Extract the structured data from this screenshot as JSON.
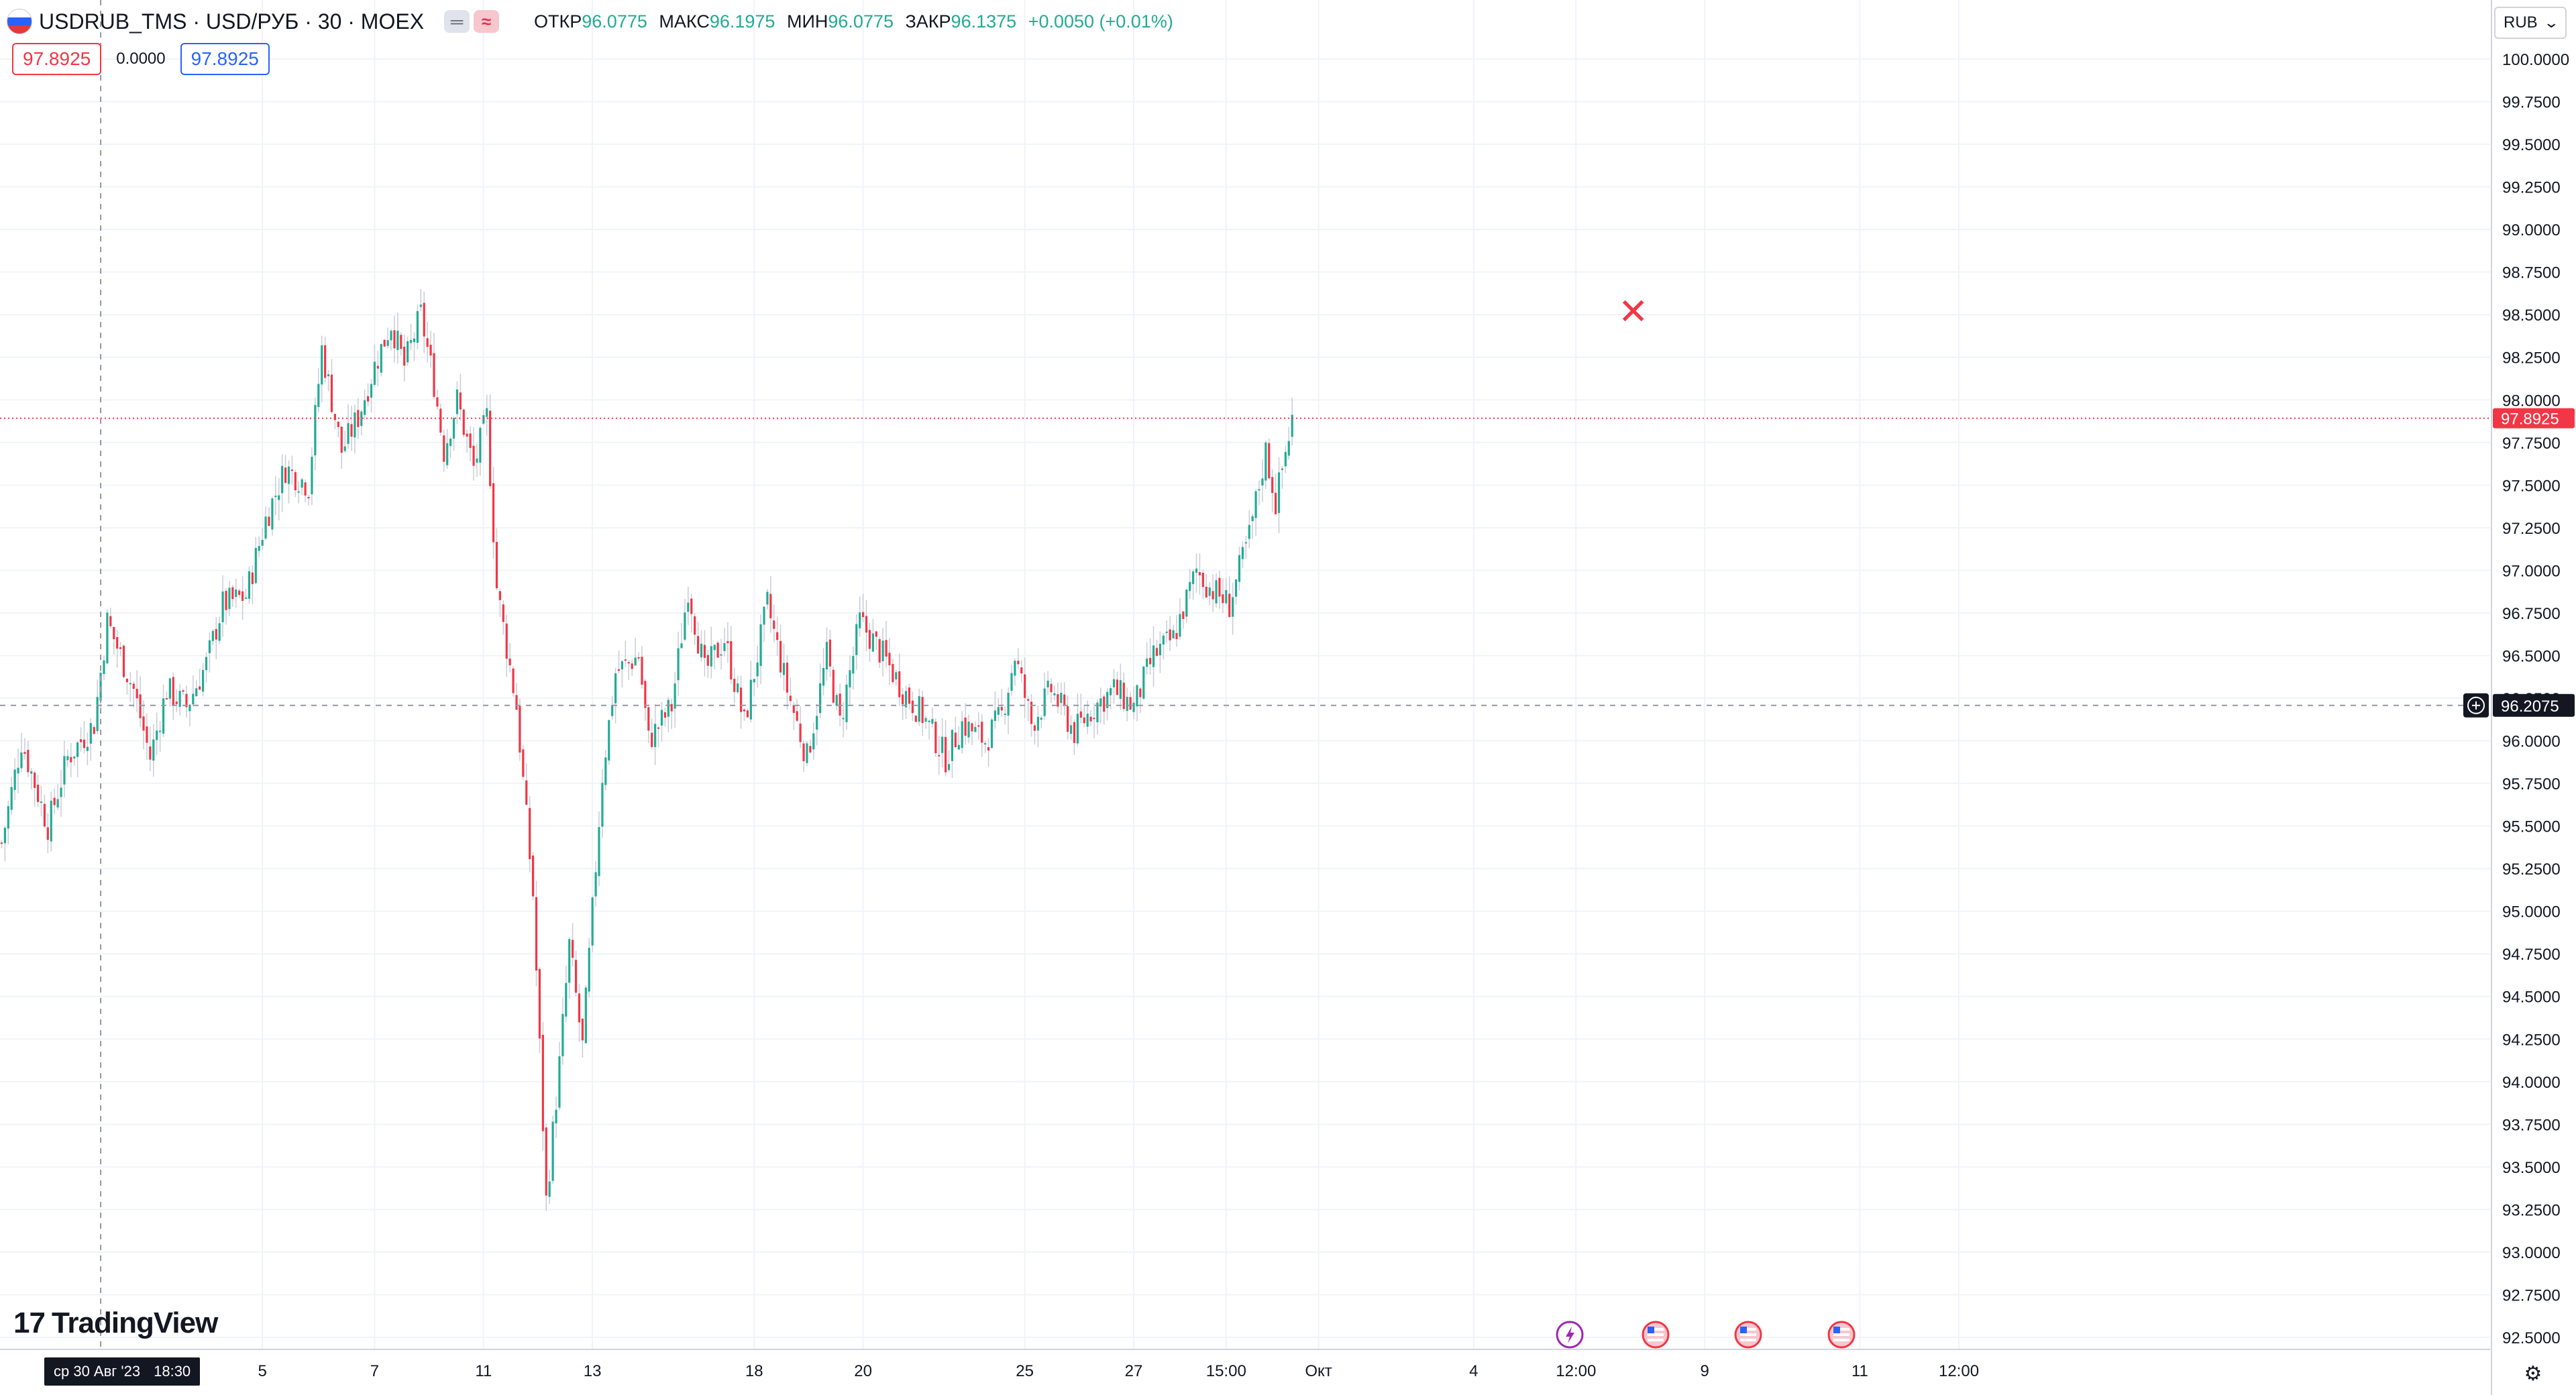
{
  "header": {
    "symbol": "USDRUB_TMS · USD/РУБ · 30 · MOEX",
    "toggle_a": "═",
    "toggle_b": "≈",
    "ohlc": {
      "open_label": "ОТКР",
      "open": "96.0775",
      "high_label": "МАКС",
      "high": "96.1975",
      "low_label": "МИН",
      "low": "96.0775",
      "close_label": "ЗАКР",
      "close": "96.1375",
      "change": "+0.0050 (+0.01%)"
    }
  },
  "quote": {
    "bid": "97.8925",
    "spread": "0.0000",
    "ask": "97.8925"
  },
  "currency_button": {
    "label": "RUB",
    "icon": "chevron-down-icon"
  },
  "crosshair_date": {
    "date": "ср 30 Авг '23",
    "time": "18:30"
  },
  "branding": {
    "logo_text": "TradingView",
    "logo_mark": "17"
  },
  "colors": {
    "up": "#22ab94",
    "down": "#f23645",
    "grid": "#f0f3fa",
    "last_price": "#f23645",
    "crosshair_label": "#131722"
  },
  "event_icons": [
    "lightning-icon",
    "us-flag-icon",
    "us-flag-icon",
    "us-flag-icon"
  ],
  "chart_data": {
    "type": "candlestick",
    "instrument": "USDRUB_TMS",
    "interval": "30",
    "exchange": "MOEX",
    "y_axis": {
      "ticks": [
        "100.0000",
        "99.7500",
        "99.5000",
        "99.2500",
        "99.0000",
        "98.7500",
        "98.5000",
        "98.2500",
        "98.0000",
        "97.7500",
        "97.5000",
        "97.2500",
        "97.0000",
        "96.7500",
        "96.5000",
        "96.2500",
        "96.0000",
        "95.7500",
        "95.5000",
        "95.2500",
        "95.0000",
        "94.7500",
        "94.5000",
        "94.2500",
        "94.0000",
        "93.7500",
        "93.5000",
        "93.2500",
        "93.0000",
        "92.7500",
        "92.5000"
      ],
      "ylim": [
        92.5,
        100.0
      ]
    },
    "x_axis": {
      "ticks": [
        {
          "label": "5",
          "bar": 79
        },
        {
          "label": "7",
          "bar": 113
        },
        {
          "label": "11",
          "bar": 146
        },
        {
          "label": "13",
          "bar": 179
        },
        {
          "label": "18",
          "bar": 228
        },
        {
          "label": "20",
          "bar": 261
        },
        {
          "label": "25",
          "bar": 310
        },
        {
          "label": "27",
          "bar": 343
        },
        {
          "label": "15:00",
          "bar": 371
        },
        {
          "label": "Окт",
          "bar": 399
        },
        {
          "label": "4",
          "bar": 446
        },
        {
          "label": "12:00",
          "bar": 477
        },
        {
          "label": "9",
          "bar": 516
        },
        {
          "label": "11",
          "bar": 563
        },
        {
          "label": "12:00",
          "bar": 593
        }
      ]
    },
    "last_price": {
      "value": 97.8925,
      "label": "97.8925"
    },
    "crosshair_price": {
      "value": 96.2075,
      "label": "96.2075"
    },
    "crosshair_bar": 30,
    "bar_count": 392,
    "close_path": [
      [
        0,
        95.4
      ],
      [
        6,
        96.0
      ],
      [
        14,
        95.5
      ],
      [
        20,
        95.9
      ],
      [
        28,
        96.1
      ],
      [
        32,
        96.7
      ],
      [
        40,
        96.3
      ],
      [
        45,
        95.9
      ],
      [
        50,
        96.3
      ],
      [
        56,
        96.2
      ],
      [
        62,
        96.45
      ],
      [
        67,
        96.8
      ],
      [
        74,
        96.85
      ],
      [
        80,
        97.3
      ],
      [
        86,
        97.6
      ],
      [
        93,
        97.5
      ],
      [
        97,
        98.3
      ],
      [
        103,
        97.7
      ],
      [
        108,
        97.9
      ],
      [
        113,
        98.2
      ],
      [
        118,
        98.45
      ],
      [
        122,
        98.2
      ],
      [
        127,
        98.5
      ],
      [
        131,
        98.1
      ],
      [
        134,
        97.7
      ],
      [
        138,
        98.0
      ],
      [
        143,
        97.6
      ],
      [
        147,
        97.9
      ],
      [
        150,
        96.9
      ],
      [
        156,
        96.2
      ],
      [
        161,
        95.1
      ],
      [
        165,
        93.3
      ],
      [
        169,
        94.1
      ],
      [
        172,
        94.8
      ],
      [
        176,
        94.2
      ],
      [
        182,
        95.8
      ],
      [
        186,
        96.4
      ],
      [
        193,
        96.5
      ],
      [
        196,
        96.0
      ],
      [
        203,
        96.2
      ],
      [
        208,
        96.9
      ],
      [
        213,
        96.4
      ],
      [
        219,
        96.6
      ],
      [
        225,
        96.1
      ],
      [
        232,
        96.8
      ],
      [
        238,
        96.3
      ],
      [
        244,
        95.9
      ],
      [
        250,
        96.5
      ],
      [
        254,
        96.1
      ],
      [
        260,
        96.7
      ],
      [
        267,
        96.5
      ],
      [
        273,
        96.3
      ],
      [
        279,
        96.15
      ],
      [
        286,
        95.9
      ],
      [
        291,
        96.1
      ],
      [
        298,
        96.0
      ],
      [
        303,
        96.15
      ],
      [
        307,
        96.5
      ],
      [
        312,
        96.1
      ],
      [
        318,
        96.3
      ],
      [
        325,
        96.05
      ],
      [
        331,
        96.2
      ],
      [
        337,
        96.3
      ],
      [
        343,
        96.2
      ],
      [
        349,
        96.5
      ],
      [
        355,
        96.6
      ],
      [
        362,
        97.0
      ],
      [
        366,
        96.9
      ],
      [
        372,
        96.8
      ],
      [
        378,
        97.2
      ],
      [
        383,
        97.7
      ],
      [
        386,
        97.4
      ],
      [
        391,
        97.89
      ]
    ]
  }
}
